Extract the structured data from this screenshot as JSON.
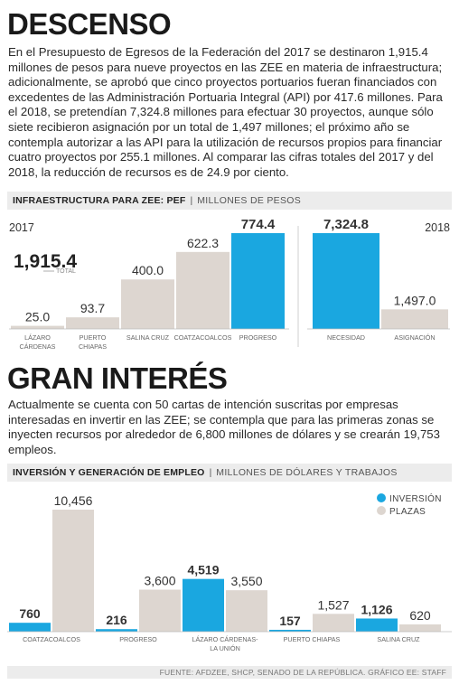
{
  "section1": {
    "title": "DESCENSO",
    "paragraph": "En el Presupuesto de Egresos de la Federación del 2017 se destinaron 1,915.4 millones de pesos para nueve proyectos en las ZEE en materia de infraestructura; adicionalmente, se aprobó que cinco proyectos portuarios fueran financiados con excedentes de las Administración Portuaria Integral (API) por 417.6 millones. Para el 2018, se pretendían 7,324.8 millones para efectuar 30 proyectos, aunque sólo siete recibieron asignación por un total de 1,497 millones; el próximo año se contempla autorizar a las API para la utilización de recursos propios para financiar cuatro proyectos por 255.1 millones. Al comparar las cifras totales del 2017 y del 2018, la reducción de recursos es de 24.9 por ciento.",
    "band_title": "INFRAESTRUCTURA PARA ZEE: PEF",
    "band_unit": "MILLONES DE PESOS"
  },
  "section2": {
    "title": "GRAN INTERÉS",
    "paragraph": "Actualmente se cuenta con 50 cartas de intención suscritas por empresas interesadas en invertir en las ZEE; se contempla que para las primeras zonas se inyecten recursos por alrededor de 6,800 millones de dólares y se crearán 19,753 empleos.",
    "band_title": "INVERSIÓN Y GENERACIÓN DE EMPLEO",
    "band_unit": "MILLONES DE DÓLARES Y TRABAJOS"
  },
  "source": "FUENTE: AFDZEE, SHCP, SENADO DE LA REPÚBLICA. GRÁFICO EE: STAFF",
  "colors": {
    "accent": "#1aa7e0",
    "gray_bar": "#ddd6d0",
    "band": "#ececec"
  },
  "chart_data": [
    {
      "type": "bar",
      "panel_label": "2017",
      "categories": [
        "LÁZARO CÁRDENAS",
        "PUERTO CHIAPAS",
        "SALINA CRUZ",
        "COATZACOALCOS",
        "PROGRESO"
      ],
      "category_lines": [
        [
          "LÁZARO",
          "CÁRDENAS"
        ],
        [
          "PUERTO",
          "CHIAPAS"
        ],
        [
          "SALINA CRUZ"
        ],
        [
          "COATZACOALCOS"
        ],
        [
          "PROGRESO"
        ]
      ],
      "values": [
        25.0,
        93.7,
        400.0,
        622.3,
        774.4
      ],
      "labels": [
        "25.0",
        "93.7",
        "400.0",
        "622.3",
        "774.4"
      ],
      "highlight": [
        false,
        false,
        false,
        false,
        true
      ],
      "total_value": "1,915.4",
      "total_label": "TOTAL",
      "ylim": [
        0,
        774.4
      ]
    },
    {
      "type": "bar",
      "panel_label": "2018",
      "categories": [
        "NECESIDAD",
        "ASIGNACIÓN"
      ],
      "values": [
        7324.8,
        1497.0
      ],
      "labels": [
        "7,324.8",
        "1,497.0"
      ],
      "highlight": [
        true,
        false
      ],
      "ylim": [
        0,
        7324.8
      ]
    },
    {
      "type": "bar",
      "categories": [
        "COATZACOALCOS",
        "PROGRESO",
        "LÁZARO CÁRDENAS-LA UNIÓN",
        "PUERTO CHIAPAS",
        "SALINA CRUZ"
      ],
      "category_lines": [
        [
          "COATZACOALCOS"
        ],
        [
          "PROGRESO"
        ],
        [
          "LÁZARO CÁRDENAS-",
          "LA UNIÓN"
        ],
        [
          "PUERTO CHIAPAS"
        ],
        [
          "SALINA CRUZ"
        ]
      ],
      "series": [
        {
          "name": "INVERSIÓN",
          "values": [
            760,
            216,
            4519,
            157,
            1126
          ],
          "labels": [
            "760",
            "216",
            "4,519",
            "157",
            "1,126"
          ]
        },
        {
          "name": "PLAZAS",
          "values": [
            10456,
            3600,
            3550,
            1527,
            620
          ],
          "labels": [
            "10,456",
            "3,600",
            "3,550",
            "1,527",
            "620"
          ]
        }
      ],
      "legend": "top-right",
      "ylim": [
        0,
        10456
      ]
    }
  ]
}
